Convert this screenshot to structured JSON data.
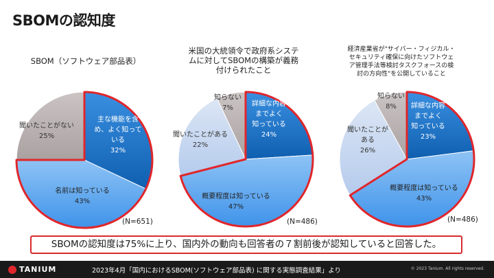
{
  "page": {
    "title": "SBOMの認知度",
    "summary": "SBOMの認知度は75%に上り、国内外の動向も回答者の７割前後が認知していると回答した。",
    "footer": {
      "logo": "TANIUM",
      "source": "2023年4月「国内におけるSBOM(ソフトウェア部品表) に関する実態調査結果」より",
      "copyright": "© 2023 Tanium. All rights reserved."
    }
  },
  "colors": {
    "blue_dark": "#1f73c6",
    "blue_mid": "#4f9fee",
    "blue_light": "#bdd1ee",
    "gray": "#bcb4b4",
    "highlight": "#e0262b"
  },
  "chart_data": [
    {
      "type": "pie",
      "title": "SBOM（ソフトウェア部品表）",
      "n": "(N=651)",
      "slices": [
        {
          "label": [
            "主な機能を含",
            "め、よく知って",
            "いる"
          ],
          "value": 32,
          "display": "32%",
          "color": "blue_dark",
          "highlight": true
        },
        {
          "label": [
            "名前は知っている"
          ],
          "value": 43,
          "display": "43%",
          "color": "blue_mid",
          "highlight": true
        },
        {
          "label": [
            "聞いたことがない"
          ],
          "value": 25,
          "display": "25%",
          "color": "gray",
          "highlight": false
        }
      ]
    },
    {
      "type": "pie",
      "title": [
        "米国の大統領令で政府系システ",
        "ムに対してSBOMの構築が義務",
        "付けられたこと"
      ],
      "n": "(N=486)",
      "slices": [
        {
          "label": [
            "詳細な内容",
            "までよく",
            "知っている"
          ],
          "value": 24,
          "display": "24%",
          "color": "blue_dark",
          "highlight": true
        },
        {
          "label": [
            "概要程度は知っている"
          ],
          "value": 47,
          "display": "47%",
          "color": "blue_mid",
          "highlight": true
        },
        {
          "label": [
            "聞いたことがある"
          ],
          "value": 22,
          "display": "22%",
          "color": "blue_light",
          "highlight": false
        },
        {
          "label": [
            "知らない"
          ],
          "value": 7,
          "display": "7%",
          "color": "gray",
          "highlight": false
        }
      ]
    },
    {
      "type": "pie",
      "title": [
        "経済産業省が\"サイバー・フィジカル・",
        "セキュリティ確保に向けたソフトウェ",
        "ア管理手法等検討タスクフォースの検",
        "討の方向性\"を公開していること"
      ],
      "n": "(N=486)",
      "slices": [
        {
          "label": [
            "詳細な内容",
            "までよく",
            "知っている"
          ],
          "value": 23,
          "display": "23%",
          "color": "blue_dark",
          "highlight": true
        },
        {
          "label": [
            "概要程度は知っている"
          ],
          "value": 43,
          "display": "43%",
          "color": "blue_mid",
          "highlight": true
        },
        {
          "label": [
            "聞いたことが",
            "ある"
          ],
          "value": 26,
          "display": "26%",
          "color": "blue_light",
          "highlight": false
        },
        {
          "label": [
            "知らない"
          ],
          "value": 8,
          "display": "8%",
          "color": "gray",
          "highlight": false
        }
      ]
    }
  ]
}
